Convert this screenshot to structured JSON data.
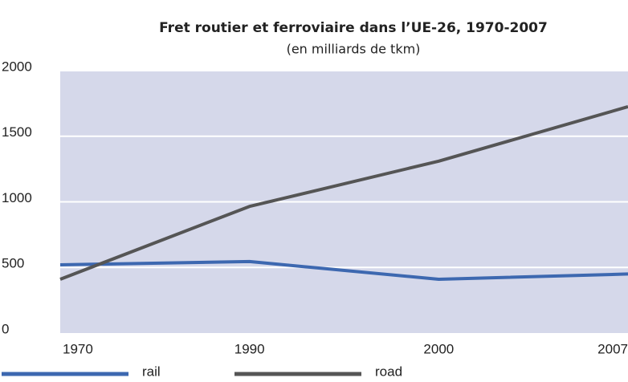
{
  "chart_data": {
    "type": "line",
    "title": "Fret routier et ferroviaire dans l’UE-26, 1970-2007",
    "subtitle": "(en milliards de tkm)",
    "categories": [
      "1970",
      "1990",
      "2000",
      "2007"
    ],
    "series": [
      {
        "name": "rail",
        "color": "#3d68b0",
        "values": [
          520,
          545,
          410,
          450
        ]
      },
      {
        "name": "road",
        "color": "#555555",
        "values": [
          410,
          965,
          1310,
          1725
        ]
      }
    ],
    "ylim": [
      0,
      2000
    ],
    "yticks": [
      0,
      500,
      1000,
      1500,
      2000
    ],
    "grid": true
  }
}
